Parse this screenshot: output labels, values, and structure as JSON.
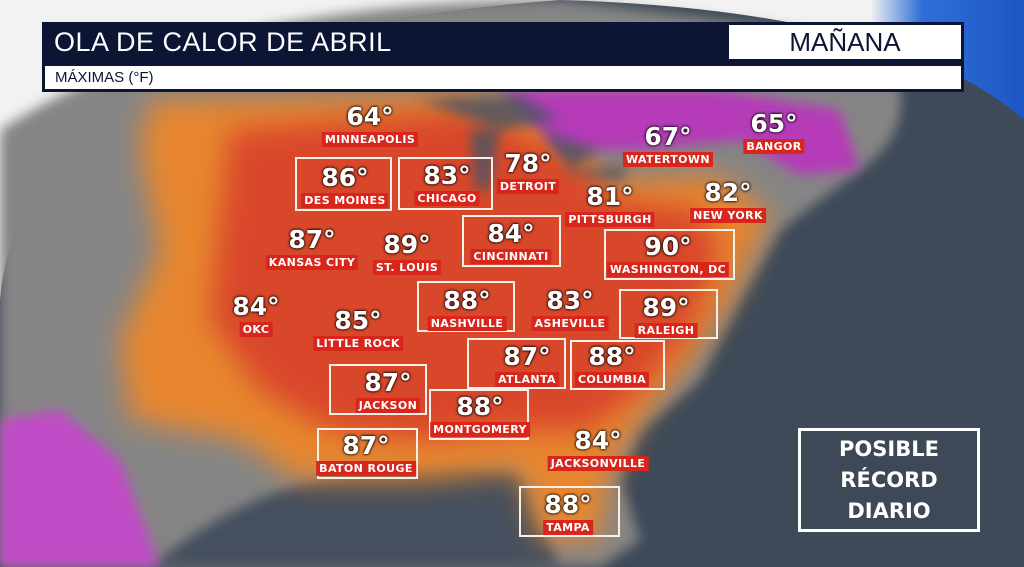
{
  "header": {
    "title": "OLA DE CALOR DE ABRIL",
    "day": "MAÑANA",
    "subtitle": "MÁXIMAS (°F)"
  },
  "legend": {
    "lines": [
      "POSIBLE",
      "RÉCORD",
      "DIARIO"
    ]
  },
  "colors": {
    "header_bg": "#0c1533",
    "label_bg": "#d8261c",
    "heat_orange": "#e8792a",
    "heat_red": "#d9472a",
    "heat_magenta": "#b53ab8",
    "ocean": "#3e4a58",
    "land": "#8a8a8a"
  },
  "cities": [
    {
      "name": "MINNEAPOLIS",
      "temp": "64°",
      "record": false
    },
    {
      "name": "DES MOINES",
      "temp": "86°",
      "record": true
    },
    {
      "name": "CHICAGO",
      "temp": "83°",
      "record": true
    },
    {
      "name": "DETROIT",
      "temp": "78°",
      "record": false
    },
    {
      "name": "WATERTOWN",
      "temp": "67°",
      "record": false
    },
    {
      "name": "BANGOR",
      "temp": "65°",
      "record": false
    },
    {
      "name": "PITTSBURGH",
      "temp": "81°",
      "record": false
    },
    {
      "name": "NEW YORK",
      "temp": "82°",
      "record": false
    },
    {
      "name": "KANSAS CITY",
      "temp": "87°",
      "record": false
    },
    {
      "name": "ST. LOUIS",
      "temp": "89°",
      "record": false
    },
    {
      "name": "CINCINNATI",
      "temp": "84°",
      "record": true
    },
    {
      "name": "WASHINGTON, DC",
      "temp": "90°",
      "record": true
    },
    {
      "name": "OKC",
      "temp": "84°",
      "record": false
    },
    {
      "name": "LITTLE ROCK",
      "temp": "85°",
      "record": false
    },
    {
      "name": "NASHVILLE",
      "temp": "88°",
      "record": true
    },
    {
      "name": "ASHEVILLE",
      "temp": "83°",
      "record": false
    },
    {
      "name": "RALEIGH",
      "temp": "89°",
      "record": true
    },
    {
      "name": "ATLANTA",
      "temp": "87°",
      "record": true
    },
    {
      "name": "COLUMBIA",
      "temp": "88°",
      "record": true
    },
    {
      "name": "JACKSON",
      "temp": "87°",
      "record": true
    },
    {
      "name": "MONTGOMERY",
      "temp": "88°",
      "record": true
    },
    {
      "name": "BATON ROUGE",
      "temp": "87°",
      "record": true
    },
    {
      "name": "JACKSONVILLE",
      "temp": "84°",
      "record": false
    },
    {
      "name": "TAMPA",
      "temp": "88°",
      "record": true
    }
  ]
}
